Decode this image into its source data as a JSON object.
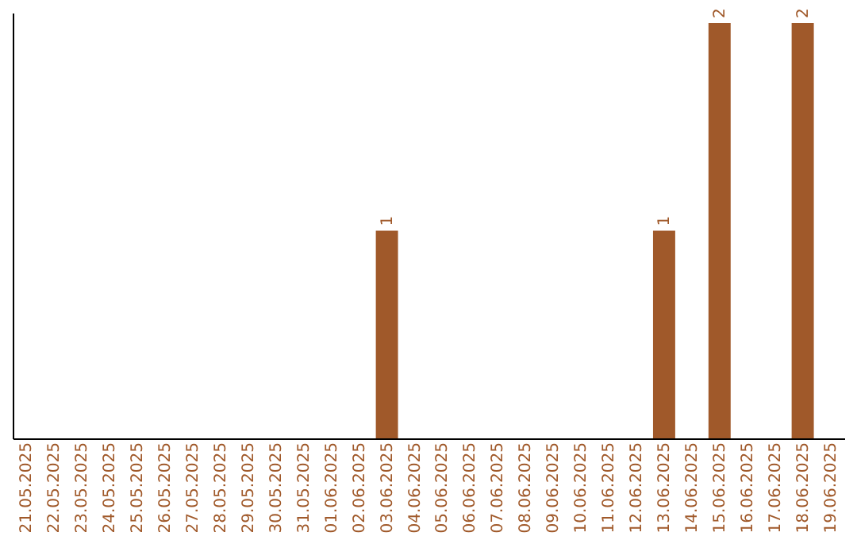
{
  "chart_data": {
    "type": "bar",
    "categories": [
      "21.05.2025",
      "22.05.2025",
      "23.05.2025",
      "24.05.2025",
      "25.05.2025",
      "26.05.2025",
      "27.05.2025",
      "28.05.2025",
      "29.05.2025",
      "30.05.2025",
      "31.05.2025",
      "01.06.2025",
      "02.06.2025",
      "03.06.2025",
      "04.06.2025",
      "05.06.2025",
      "06.06.2025",
      "07.06.2025",
      "08.06.2025",
      "09.06.2025",
      "10.06.2025",
      "11.06.2025",
      "12.06.2025",
      "13.06.2025",
      "14.06.2025",
      "15.06.2025",
      "16.06.2025",
      "17.06.2025",
      "18.06.2025",
      "19.06.2025"
    ],
    "values": [
      null,
      null,
      null,
      null,
      null,
      null,
      null,
      null,
      null,
      null,
      null,
      null,
      null,
      1,
      null,
      null,
      null,
      null,
      null,
      null,
      null,
      null,
      null,
      1,
      null,
      2,
      null,
      null,
      2,
      null
    ],
    "color": "#a0592a",
    "ylim": [
      0,
      2.05
    ],
    "data_labels": true,
    "grid": false,
    "tick_labels": "x"
  }
}
